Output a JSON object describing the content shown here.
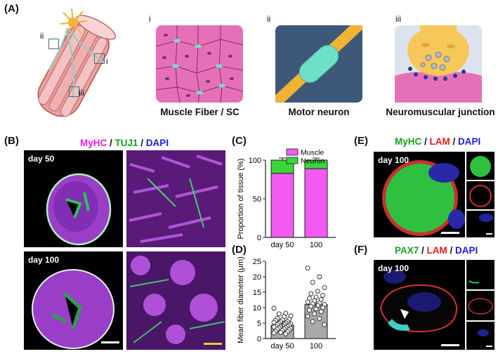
{
  "panels": {
    "A": {
      "label": "(A)",
      "inset_labels": [
        "ii",
        "i",
        "iii"
      ],
      "schematics": [
        {
          "roman": "i",
          "caption": "Muscle Fiber / SC"
        },
        {
          "roman": "ii",
          "caption": "Motor neuron"
        },
        {
          "roman": "iii",
          "caption": "Neuromuscular junction"
        }
      ]
    },
    "B": {
      "label": "(B)",
      "stain": [
        {
          "text": "MyHC",
          "color": "#e020e0"
        },
        {
          "text": " / ",
          "color": "#111111"
        },
        {
          "text": "TUJ1",
          "color": "#19a019"
        },
        {
          "text": " / ",
          "color": "#111111"
        },
        {
          "text": "DAPI",
          "color": "#1a1ae0"
        }
      ],
      "day_top": "day 50",
      "day_bottom": "day 100"
    },
    "C": {
      "label": "(C)"
    },
    "D": {
      "label": "(D)"
    },
    "E": {
      "label": "(E)",
      "stain": [
        {
          "text": "MyHC",
          "color": "#19a019"
        },
        {
          "text": " / ",
          "color": "#111111"
        },
        {
          "text": "LAM",
          "color": "#e01a1a"
        },
        {
          "text": " / ",
          "color": "#111111"
        },
        {
          "text": "DAPI",
          "color": "#1a1ae0"
        }
      ],
      "day": "day 100"
    },
    "F": {
      "label": "(F)",
      "stain": [
        {
          "text": "PAX7",
          "color": "#19a019"
        },
        {
          "text": " / ",
          "color": "#111111"
        },
        {
          "text": "LAM",
          "color": "#e01a1a"
        },
        {
          "text": " / ",
          "color": "#111111"
        },
        {
          "text": "DAPI",
          "color": "#1a1ae0"
        }
      ],
      "day": "day 100"
    }
  },
  "chart_data": [
    {
      "type": "bar",
      "stacked": true,
      "ylabel": "Proportion of tissue (%)",
      "categories": [
        "day 50",
        "100"
      ],
      "ylim": [
        0,
        100
      ],
      "yticks": [
        0,
        50,
        100
      ],
      "series": [
        {
          "name": "Muscle",
          "color": "#f25af2",
          "values": [
            83,
            89
          ]
        },
        {
          "name": "Neuron",
          "color": "#3bd63b",
          "values": [
            17,
            11
          ]
        }
      ],
      "legend": "top-right"
    },
    {
      "type": "bar",
      "ylabel": "Mean fiber diameter (μm)",
      "categories": [
        "day 50",
        "100"
      ],
      "values": [
        4.3,
        11.0
      ],
      "colors": [
        "#a8a8a8",
        "#a8a8a8"
      ],
      "ylim": [
        0,
        25
      ],
      "yticks": [
        0,
        5,
        10,
        15,
        20,
        25
      ],
      "points": [
        [
          9.8,
          8.2,
          8.0,
          7.3,
          7.1,
          6.5,
          6.2,
          6.0,
          5.8,
          5.5,
          5.4,
          5.2,
          5.0,
          4.9,
          4.7,
          4.6,
          4.5,
          4.3,
          4.2,
          4.0,
          3.9,
          3.8,
          3.7,
          3.5,
          3.4,
          3.3,
          3.1,
          3.0,
          2.8,
          2.6,
          2.4,
          2.2,
          2.0,
          1.8,
          1.5
        ],
        [
          22.8,
          20.0,
          18.2,
          16.5,
          15.3,
          14.5,
          14.0,
          13.4,
          13.0,
          12.6,
          12.2,
          11.8,
          11.5,
          11.2,
          11.0,
          10.7,
          10.4,
          10.0,
          9.6,
          9.2,
          8.7,
          8.0,
          7.2,
          6.5,
          5.5,
          4.5
        ]
      ]
    }
  ]
}
